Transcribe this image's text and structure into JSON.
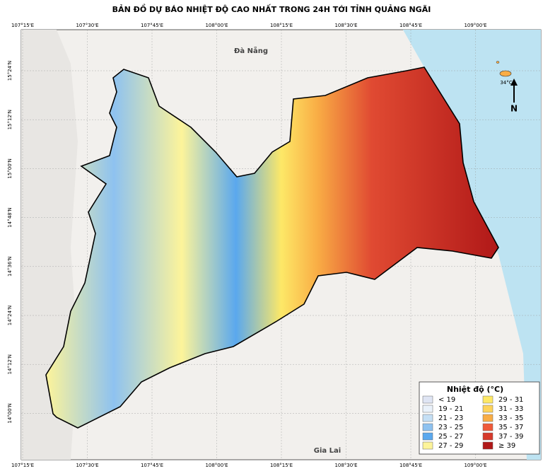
{
  "title": "BẢN ĐỒ DỰ BÁO NHIỆT ĐỘ CAO NHẤT TRONG 24H TỚI TỈNH QUẢNG NGÃI",
  "axes": {
    "lon_labels": [
      "107°15'E",
      "107°30'E",
      "107°45'E",
      "108°00'E",
      "108°15'E",
      "108°30'E",
      "108°45'E",
      "109°00'E"
    ],
    "lat_labels": [
      "15°24'N",
      "15°12'N",
      "15°00'N",
      "14°48'N",
      "14°36'N",
      "14°24'N",
      "14°12'N",
      "14°00'N"
    ]
  },
  "places": {
    "north": "Đà Nẵng",
    "south": "Gia Lai",
    "island": "34°C",
    "north_arrow": "N"
  },
  "legend": {
    "title": "Nhiệt độ (°C)",
    "items": [
      {
        "label": "< 19",
        "color": "#dfe5f4"
      },
      {
        "label": "19 - 21",
        "color": "#eaf2fb"
      },
      {
        "label": "21 - 23",
        "color": "#c4dff5"
      },
      {
        "label": "23 - 25",
        "color": "#8ec2f0"
      },
      {
        "label": "25 - 27",
        "color": "#5aa8ee"
      },
      {
        "label": "27 - 29",
        "color": "#fdf49a"
      },
      {
        "label": "29 - 31",
        "color": "#fde867"
      },
      {
        "label": "31 - 33",
        "color": "#fdd35a"
      },
      {
        "label": "33 - 35",
        "color": "#f9ad45"
      },
      {
        "label": "35 - 37",
        "color": "#ef5a3a"
      },
      {
        "label": "37 - 39",
        "color": "#d63a2c"
      },
      {
        "label": "≥ 39",
        "color": "#b01818"
      }
    ]
  }
}
